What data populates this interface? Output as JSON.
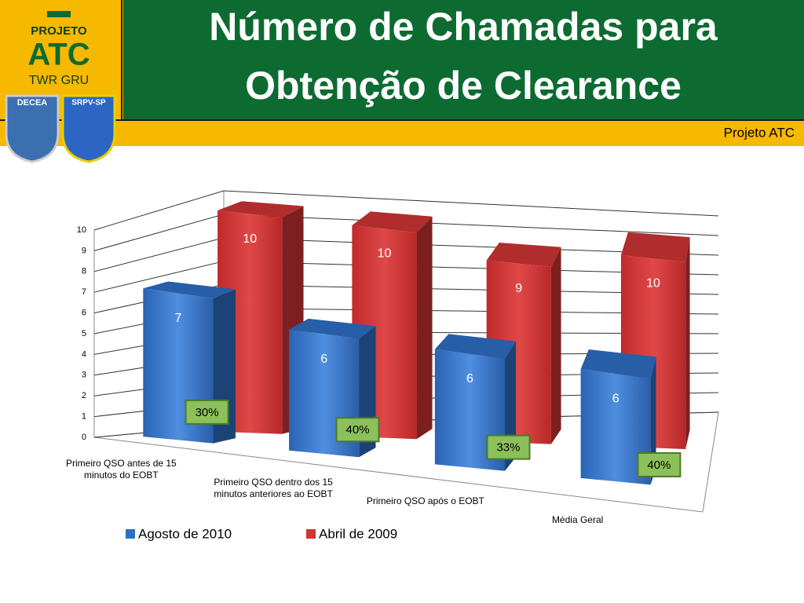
{
  "header": {
    "title": "Número de Chamadas para Obtenção de Clearance",
    "subtitle": "Projeto ATC",
    "logo": {
      "line1": "PROJETO",
      "line2": "ATC",
      "line3": "TWR GRU",
      "badge1": "DECEA",
      "badge2": "SRPV-SP"
    }
  },
  "chart_data": {
    "type": "bar3d",
    "categories": [
      "Primeiro QSO antes de 15 minutos do EOBT",
      "Primeiro QSO dentro dos 15 minutos anteriores ao EOBT",
      "Primeiro QSO após o EOBT",
      "Média Geral"
    ],
    "series": [
      {
        "name": "Agosto de 2010",
        "color": "#2e6fc4",
        "values": [
          7,
          6,
          6,
          6
        ]
      },
      {
        "name": "Abril de 2009",
        "color": "#d03434",
        "values": [
          10,
          10,
          9,
          10
        ]
      }
    ],
    "annotations": [
      "30%",
      "40%",
      "33%",
      "40%"
    ],
    "ylim": [
      0,
      10
    ],
    "yticks": [
      0,
      1,
      2,
      3,
      4,
      5,
      6,
      7,
      8,
      9,
      10
    ],
    "grid": true,
    "legend": "bottom"
  }
}
